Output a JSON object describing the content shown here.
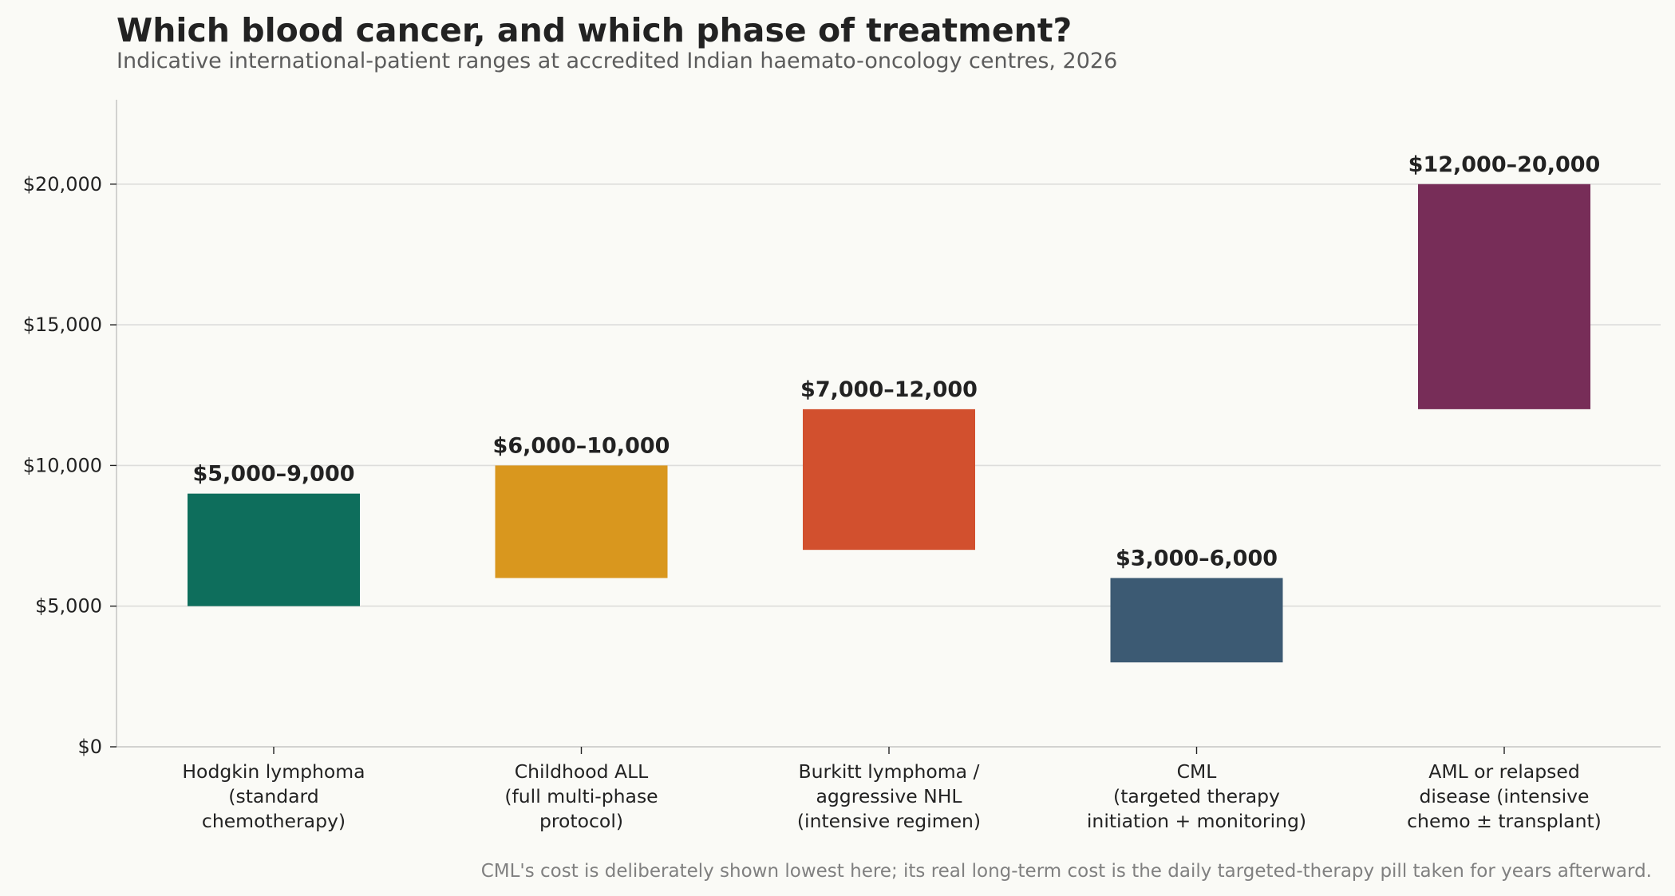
{
  "chart_data": {
    "type": "bar",
    "title": "Which blood cancer, and which phase of treatment?",
    "subtitle": "Indicative international-patient ranges at accredited Indian haemato-oncology centres, 2026",
    "xlabel": "",
    "ylabel": "",
    "ylim": [
      0,
      23000
    ],
    "y_ticks": [
      0,
      5000,
      10000,
      15000,
      20000
    ],
    "y_tick_labels": [
      "$0",
      "$5,000",
      "$10,000",
      "$15,000",
      "$20,000"
    ],
    "grid": "horizontal",
    "categories": [
      [
        "Hodgkin lymphoma",
        "(standard",
        "chemotherapy)"
      ],
      [
        "Childhood ALL",
        "(full multi-phase",
        "protocol)"
      ],
      [
        "Burkitt lymphoma /",
        "aggressive NHL",
        "(intensive regimen)"
      ],
      [
        "CML",
        "(targeted therapy",
        "initiation + monitoring)"
      ],
      [
        "AML or relapsed",
        "disease (intensive",
        "chemo ± transplant)"
      ]
    ],
    "ranges": [
      [
        5000,
        9000
      ],
      [
        6000,
        10000
      ],
      [
        7000,
        12000
      ],
      [
        3000,
        6000
      ],
      [
        12000,
        20000
      ]
    ],
    "data_labels": [
      "$5,000–9,000",
      "$6,000–10,000",
      "$7,000–12,000",
      "$3,000–6,000",
      "$12,000–20,000"
    ],
    "colors": [
      "#0e6e5c",
      "#d9971e",
      "#d2502e",
      "#3c5a73",
      "#772d58"
    ],
    "footnote": "CML's cost is deliberately shown lowest here; its real long-term cost is the daily targeted-therapy pill taken for years afterward."
  }
}
